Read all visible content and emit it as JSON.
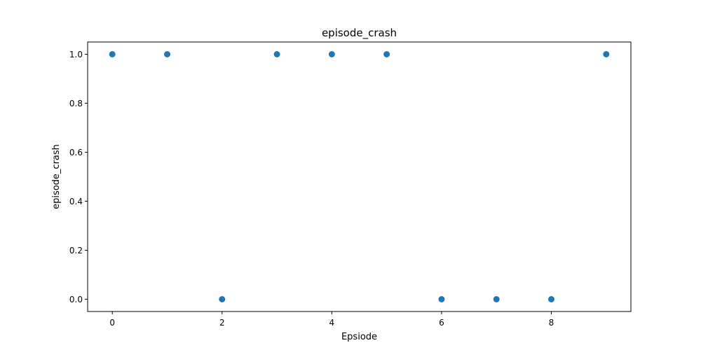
{
  "chart_data": {
    "type": "scatter",
    "title": "episode_crash",
    "xlabel": "Epsiode",
    "ylabel": "episode_crash",
    "x": [
      0,
      1,
      2,
      3,
      4,
      5,
      6,
      7,
      8,
      9
    ],
    "y": [
      1.0,
      1.0,
      0.0,
      1.0,
      1.0,
      1.0,
      0.0,
      0.0,
      0.0,
      1.0
    ],
    "xlim": [
      -0.45,
      9.45
    ],
    "ylim": [
      -0.05,
      1.05
    ],
    "xticks": [
      0,
      2,
      4,
      6,
      8
    ],
    "xtick_labels": [
      "0",
      "2",
      "4",
      "6",
      "8"
    ],
    "yticks": [
      0.0,
      0.2,
      0.4,
      0.6,
      0.8,
      1.0
    ],
    "ytick_labels": [
      "0.0",
      "0.2",
      "0.4",
      "0.6",
      "0.8",
      "1.0"
    ],
    "grid": false,
    "legend": "none",
    "marker_color": "#1f77b4"
  }
}
